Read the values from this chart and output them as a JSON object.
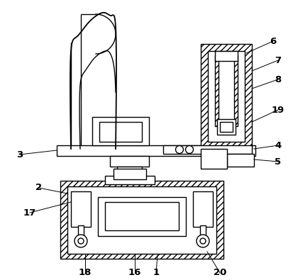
{
  "bg_color": "#ffffff",
  "line_color": "#000000",
  "lw": 1.0,
  "fig_w": 4.14,
  "fig_h": 3.95,
  "dpi": 100
}
